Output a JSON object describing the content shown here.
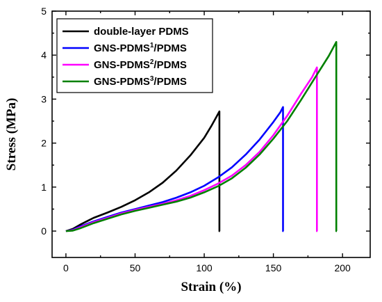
{
  "chart_data": {
    "type": "line",
    "xlabel": "Strain (%)",
    "ylabel": "Stress (MPa)",
    "xlim": [
      -10,
      220
    ],
    "ylim": [
      -0.6,
      5
    ],
    "xticks": [
      0,
      50,
      100,
      150,
      200
    ],
    "yticks": [
      0,
      1,
      2,
      3,
      4,
      5
    ],
    "xtick_labels": [
      "0",
      "50",
      "100",
      "150",
      "200"
    ],
    "ytick_labels": [
      "0",
      "1",
      "2",
      "3",
      "4",
      "5"
    ],
    "grid": false,
    "legend_position": "top-left",
    "series": [
      {
        "name_parts": [
          "double-layer PDMS"
        ],
        "color": "#000000",
        "x": [
          0,
          5,
          10,
          20,
          30,
          40,
          50,
          60,
          70,
          80,
          90,
          100,
          105,
          108,
          111,
          111,
          111.4
        ],
        "y": [
          0,
          0.05,
          0.14,
          0.3,
          0.42,
          0.55,
          0.7,
          0.88,
          1.1,
          1.38,
          1.72,
          2.12,
          2.38,
          2.55,
          2.72,
          0,
          0
        ]
      },
      {
        "name_parts": [
          "GNS-PDMS",
          "1",
          "/PDMS"
        ],
        "color": "#0000ff",
        "x": [
          0,
          5,
          10,
          20,
          30,
          40,
          50,
          60,
          70,
          80,
          90,
          100,
          110,
          120,
          130,
          140,
          150,
          155,
          157,
          157,
          157.4
        ],
        "y": [
          0,
          0.03,
          0.1,
          0.22,
          0.32,
          0.42,
          0.5,
          0.58,
          0.66,
          0.76,
          0.88,
          1.03,
          1.22,
          1.45,
          1.74,
          2.08,
          2.48,
          2.7,
          2.82,
          0,
          0
        ]
      },
      {
        "name_parts": [
          "GNS-PDMS",
          "2",
          "/PDMS"
        ],
        "color": "#ff00ff",
        "x": [
          0,
          5,
          10,
          20,
          30,
          40,
          50,
          60,
          70,
          80,
          90,
          100,
          110,
          120,
          130,
          140,
          150,
          160,
          170,
          178,
          181.5,
          181.5,
          181.9
        ],
        "y": [
          0,
          0.02,
          0.08,
          0.2,
          0.3,
          0.4,
          0.48,
          0.55,
          0.62,
          0.7,
          0.8,
          0.93,
          1.08,
          1.26,
          1.5,
          1.8,
          2.18,
          2.62,
          3.12,
          3.5,
          3.72,
          0,
          0
        ]
      },
      {
        "name_parts": [
          "GNS-PDMS",
          "3",
          "/PDMS"
        ],
        "color": "#008000",
        "x": [
          0,
          5,
          10,
          20,
          30,
          40,
          50,
          60,
          70,
          80,
          90,
          100,
          110,
          120,
          130,
          140,
          150,
          160,
          170,
          180,
          190,
          195.5,
          195.5,
          195.9
        ],
        "y": [
          0,
          0.01,
          0.06,
          0.18,
          0.28,
          0.38,
          0.46,
          0.53,
          0.6,
          0.67,
          0.76,
          0.88,
          1.02,
          1.2,
          1.44,
          1.74,
          2.1,
          2.5,
          2.98,
          3.48,
          3.98,
          4.3,
          0,
          0
        ]
      }
    ]
  }
}
